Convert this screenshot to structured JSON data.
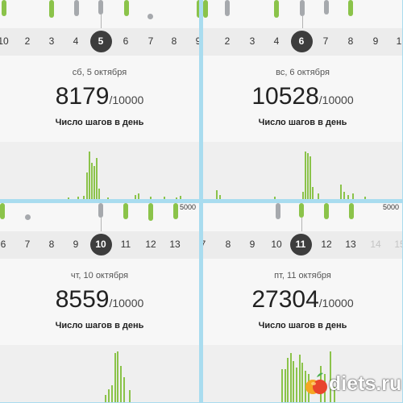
{
  "panels": [
    {
      "days": [
        {
          "label": "10",
          "muted": false
        },
        {
          "label": "2",
          "muted": false
        },
        {
          "label": "3",
          "muted": false
        },
        {
          "label": "4",
          "muted": false
        },
        {
          "label": "5",
          "selected": true
        },
        {
          "label": "6",
          "muted": false
        },
        {
          "label": "7",
          "muted": false
        },
        {
          "label": "8",
          "muted": false
        },
        {
          "label": "9",
          "muted": false
        }
      ],
      "date": "сб, 5 октября",
      "steps": "8179",
      "goal": "/10000",
      "caption": "Число шагов в день",
      "scale_label": ""
    },
    {
      "days": [
        {
          "label": "2",
          "muted": false
        },
        {
          "label": "3",
          "muted": false
        },
        {
          "label": "4",
          "muted": false
        },
        {
          "label": "5",
          "muted": false
        },
        {
          "label": "6",
          "selected": true
        },
        {
          "label": "7",
          "muted": false
        },
        {
          "label": "8",
          "muted": false
        },
        {
          "label": "9",
          "muted": false
        },
        {
          "label": "1",
          "muted": false
        }
      ],
      "date": "вс, 6 октября",
      "steps": "10528",
      "goal": "/10000",
      "caption": "Число шагов в день",
      "scale_label": ""
    },
    {
      "days": [
        {
          "label": "6",
          "muted": false
        },
        {
          "label": "7",
          "muted": false
        },
        {
          "label": "8",
          "muted": false
        },
        {
          "label": "9",
          "muted": false
        },
        {
          "label": "10",
          "selected": true
        },
        {
          "label": "11",
          "muted": false
        },
        {
          "label": "12",
          "muted": false
        },
        {
          "label": "13",
          "muted": false
        }
      ],
      "date": "чт, 10 октября",
      "steps": "8559",
      "goal": "/10000",
      "caption": "Число шагов в день",
      "scale_label": "5000"
    },
    {
      "days": [
        {
          "label": "7",
          "muted": false
        },
        {
          "label": "8",
          "muted": false
        },
        {
          "label": "9",
          "muted": false
        },
        {
          "label": "10",
          "muted": false
        },
        {
          "label": "11",
          "selected": true
        },
        {
          "label": "12",
          "muted": false
        },
        {
          "label": "13",
          "muted": false
        },
        {
          "label": "14",
          "muted": true
        },
        {
          "label": "15",
          "muted": true
        }
      ],
      "date": "пт, 11 октября",
      "steps": "27304",
      "goal": "/10000",
      "caption": "Число шагов в день",
      "scale_label": "5000"
    }
  ],
  "watermark": {
    "text": "diets.ru",
    "icon": "apple-logo-icon"
  },
  "colors": {
    "green": "#8bc34a",
    "grey": "#a6a9ad",
    "selected": "#3d3d3d"
  }
}
